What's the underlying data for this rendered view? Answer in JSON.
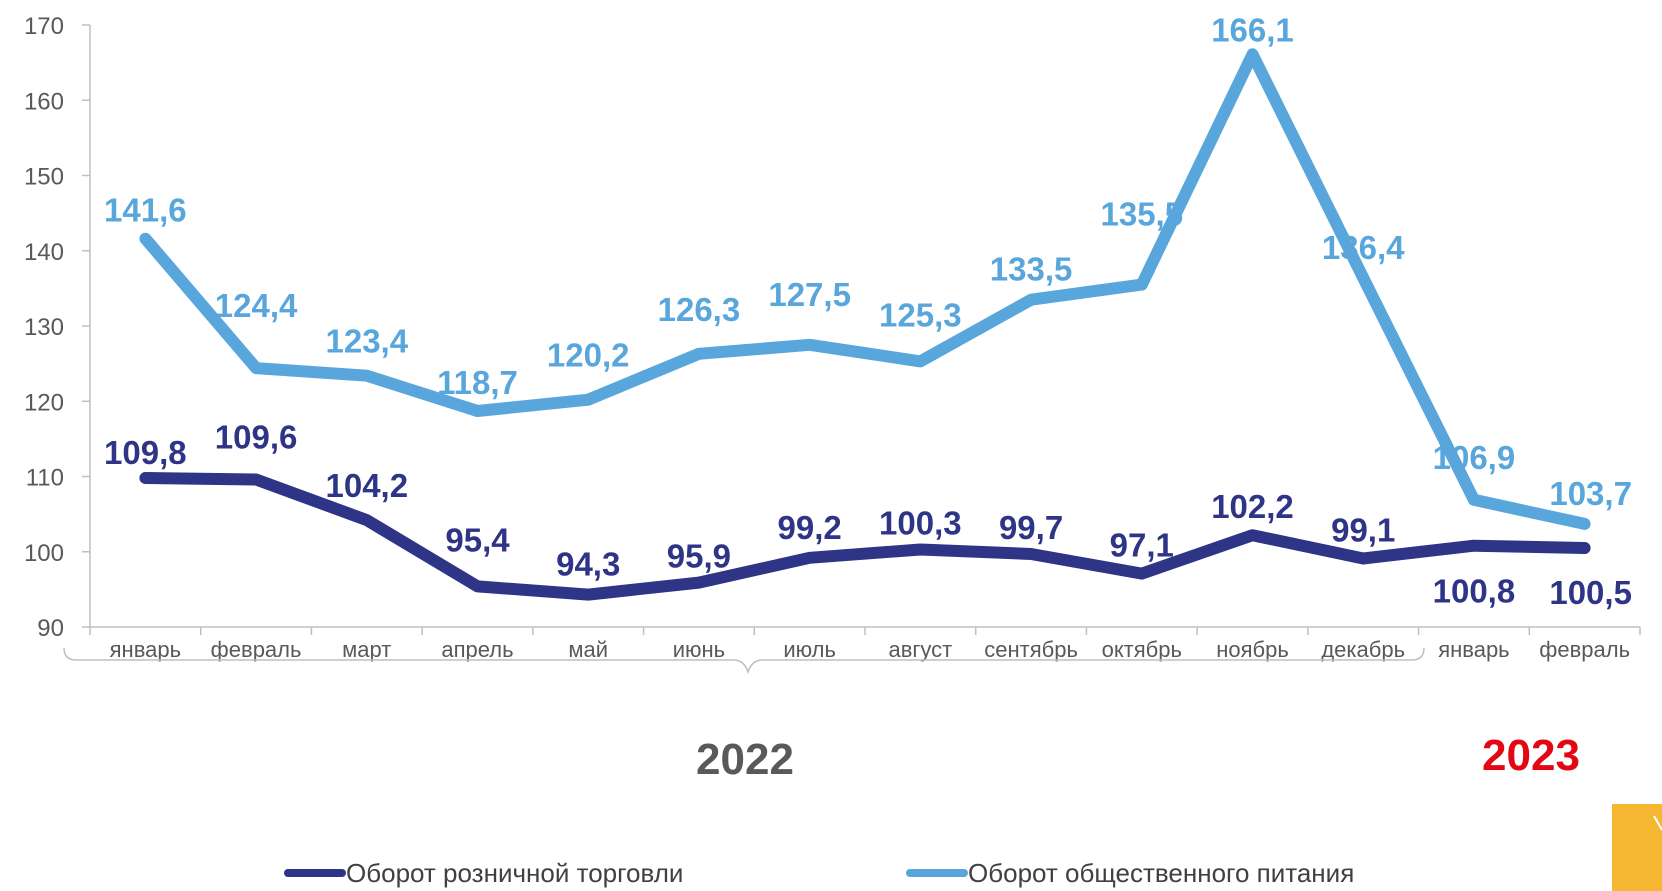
{
  "chart_data": {
    "type": "line",
    "categories": [
      "январь",
      "февраль",
      "март",
      "апрель",
      "май",
      "июнь",
      "июль",
      "август",
      "сентябрь",
      "октябрь",
      "ноябрь",
      "декабрь",
      "январь",
      "февраль"
    ],
    "series": [
      {
        "name": "Оборот розничной торговли",
        "color": "#2e3586",
        "values": [
          109.8,
          109.6,
          104.2,
          95.4,
          94.3,
          95.9,
          99.2,
          100.3,
          99.7,
          97.1,
          102.2,
          99.1,
          100.8,
          100.5
        ],
        "labels": [
          "109,8",
          "109,6",
          "104,2",
          "95,4",
          "94,3",
          "95,9",
          "99,2",
          "100,3",
          "99,7",
          "97,1",
          "102,2",
          "99,1",
          "100,8",
          "100,5"
        ]
      },
      {
        "name": "Оборот общественного питания",
        "color": "#58a6dc",
        "values": [
          141.6,
          124.4,
          123.4,
          118.7,
          120.2,
          126.3,
          127.5,
          125.3,
          133.5,
          135.5,
          166.1,
          136.4,
          106.9,
          103.7
        ],
        "labels": [
          "141,6",
          "124,4",
          "123,4",
          "118,7",
          "120,2",
          "126,3",
          "127,5",
          "125,3",
          "133,5",
          "135,5",
          "166,1",
          "136,4",
          "106,9",
          "103,7"
        ]
      }
    ],
    "ylim": [
      90,
      170
    ],
    "yticks": [
      90,
      100,
      110,
      120,
      130,
      140,
      150,
      160,
      170
    ],
    "years": [
      {
        "label": "2022",
        "color": "#595959"
      },
      {
        "label": "2023",
        "color": "#e30613"
      }
    ],
    "legend_position": "bottom",
    "grid": false
  },
  "colors": {
    "axis": "#bfbfbf",
    "nav_button": "#f5b731"
  },
  "icons": {
    "nav": "chevron-right-icon"
  }
}
